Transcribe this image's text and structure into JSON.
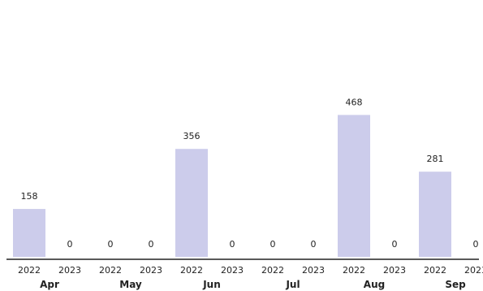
{
  "chart_data": {
    "type": "bar",
    "categories": [
      "Apr",
      "May",
      "Jun",
      "Jul",
      "Aug",
      "Sep"
    ],
    "sub_categories": [
      "2022",
      "2023"
    ],
    "series": [
      {
        "values": [
          158,
          0,
          356,
          0,
          468,
          281
        ]
      },
      {
        "values": [
          0,
          0,
          0,
          0,
          0,
          0
        ]
      }
    ],
    "value_labels": [
      [
        "158",
        "0",
        "356",
        "0",
        "468",
        "281"
      ],
      [
        "0",
        "0",
        "0",
        "0",
        "0",
        "0"
      ]
    ],
    "ylim": [
      0,
      500
    ],
    "grid": false,
    "legend": "none",
    "bar_color": "#cccceb",
    "axis_color": "#222222"
  }
}
